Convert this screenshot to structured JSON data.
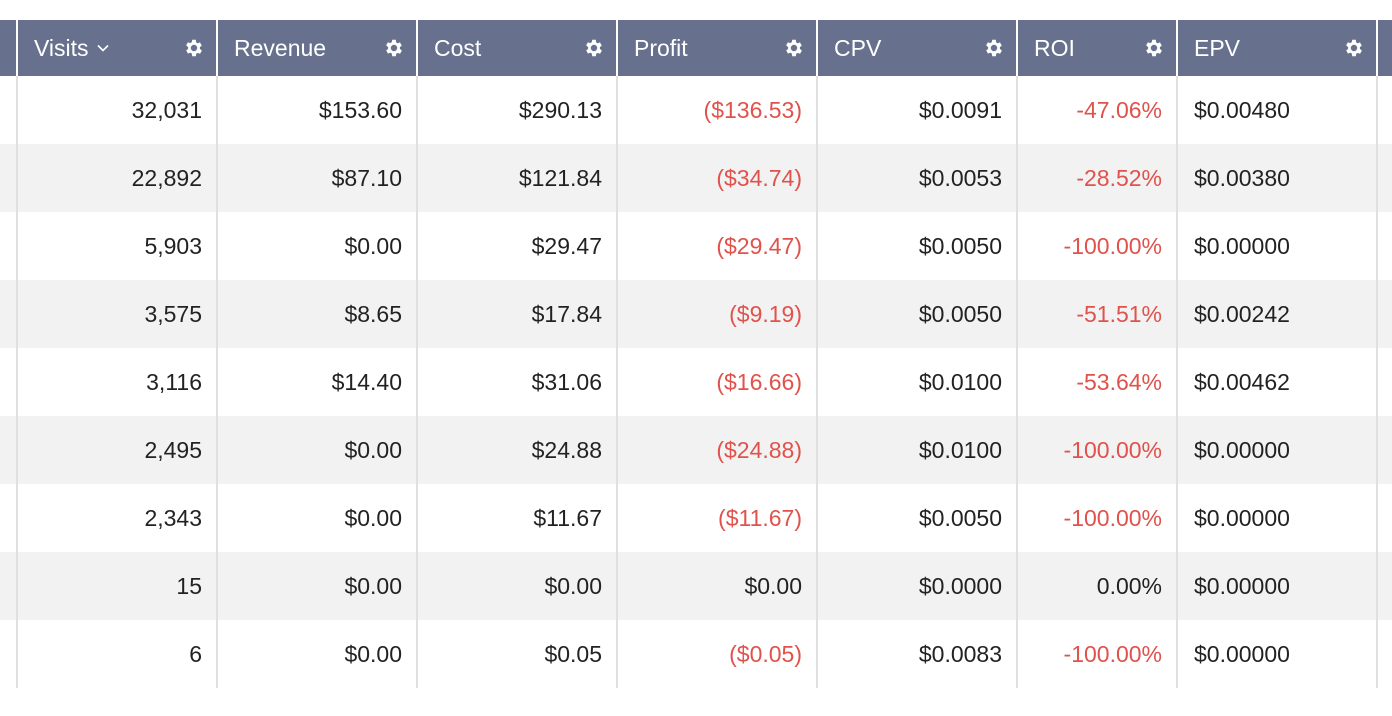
{
  "columns": [
    {
      "label": "Visits"
    },
    {
      "label": "Revenue"
    },
    {
      "label": "Cost"
    },
    {
      "label": "Profit"
    },
    {
      "label": "CPV"
    },
    {
      "label": "ROI"
    },
    {
      "label": "EPV"
    }
  ],
  "icons": {
    "sort": "chevron-down-icon",
    "settings": "gear-icon"
  },
  "colors": {
    "header_bg": "#67718d",
    "negative": "#e0524b",
    "row_alt": "#f2f2f2"
  },
  "rows": [
    {
      "visits": "32,031",
      "revenue": "$153.60",
      "cost": "$290.13",
      "profit": "($136.53)",
      "cpv": "$0.0091",
      "roi": "-47.06%",
      "epv": "$0.00480"
    },
    {
      "visits": "22,892",
      "revenue": "$87.10",
      "cost": "$121.84",
      "profit": "($34.74)",
      "cpv": "$0.0053",
      "roi": "-28.52%",
      "epv": "$0.00380"
    },
    {
      "visits": "5,903",
      "revenue": "$0.00",
      "cost": "$29.47",
      "profit": "($29.47)",
      "cpv": "$0.0050",
      "roi": "-100.00%",
      "epv": "$0.00000"
    },
    {
      "visits": "3,575",
      "revenue": "$8.65",
      "cost": "$17.84",
      "profit": "($9.19)",
      "cpv": "$0.0050",
      "roi": "-51.51%",
      "epv": "$0.00242"
    },
    {
      "visits": "3,116",
      "revenue": "$14.40",
      "cost": "$31.06",
      "profit": "($16.66)",
      "cpv": "$0.0100",
      "roi": "-53.64%",
      "epv": "$0.00462"
    },
    {
      "visits": "2,495",
      "revenue": "$0.00",
      "cost": "$24.88",
      "profit": "($24.88)",
      "cpv": "$0.0100",
      "roi": "-100.00%",
      "epv": "$0.00000"
    },
    {
      "visits": "2,343",
      "revenue": "$0.00",
      "cost": "$11.67",
      "profit": "($11.67)",
      "cpv": "$0.0050",
      "roi": "-100.00%",
      "epv": "$0.00000"
    },
    {
      "visits": "15",
      "revenue": "$0.00",
      "cost": "$0.00",
      "profit": "$0.00",
      "cpv": "$0.0000",
      "roi": "0.00%",
      "epv": "$0.00000"
    },
    {
      "visits": "6",
      "revenue": "$0.00",
      "cost": "$0.05",
      "profit": "($0.05)",
      "cpv": "$0.0083",
      "roi": "-100.00%",
      "epv": "$0.00000"
    }
  ]
}
